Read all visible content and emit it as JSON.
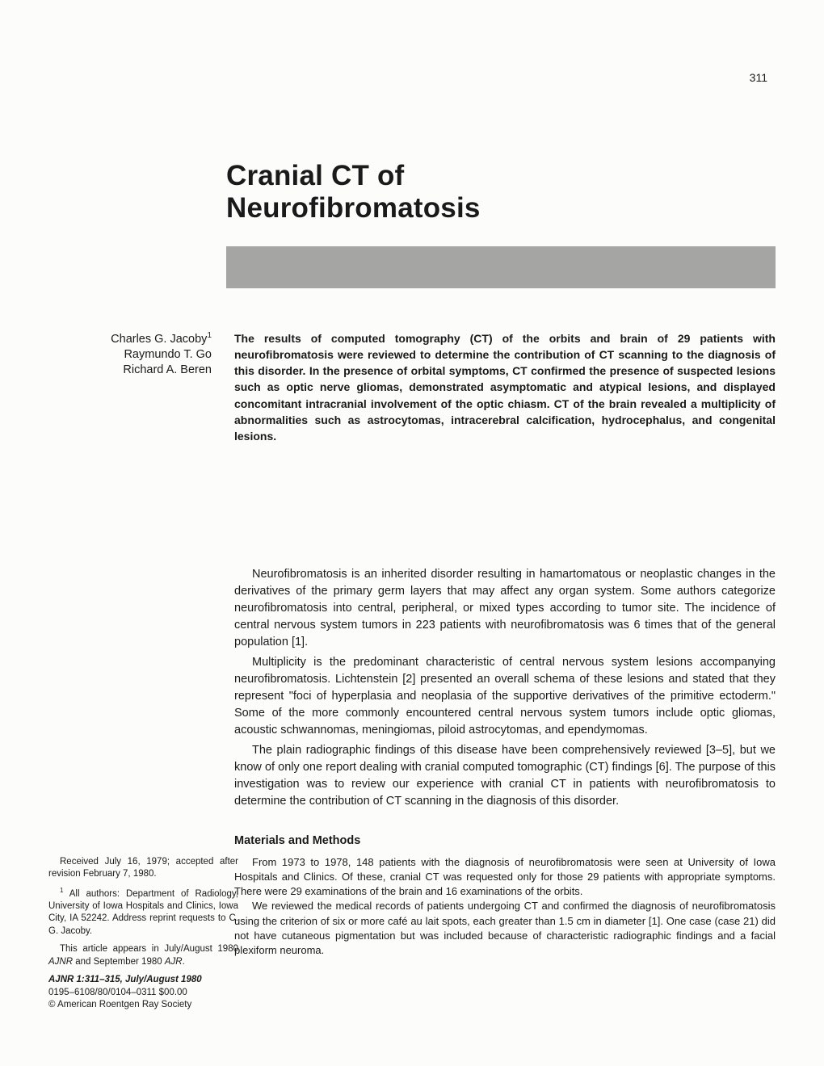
{
  "page_number": "311",
  "title": {
    "line1": "Cranial CT of",
    "line2": "Neurofibromatosis"
  },
  "authors": [
    "Charles G. Jacoby",
    "Raymundo T. Go",
    "Richard A. Beren"
  ],
  "author_superscript": "1",
  "abstract": "The results of computed tomography (CT) of the orbits and brain of 29 patients with neurofibromatosis were reviewed to determine the contribution of CT scanning to the diagnosis of this disorder. In the presence of orbital symptoms, CT confirmed the presence of suspected lesions such as optic nerve gliomas, demonstrated asymptomatic and atypical lesions, and displayed concomitant intracranial involvement of the optic chiasm. CT of the brain revealed a multiplicity of abnormalities such as astrocytomas, intracerebral calcification, hydrocephalus, and congenital lesions.",
  "intro": {
    "p1": "Neurofibromatosis is an inherited disorder resulting in hamartomatous or neoplastic changes in the derivatives of the primary germ layers that may affect any organ system. Some authors categorize neurofibromatosis into central, peripheral, or mixed types according to tumor site. The incidence of central nervous system tumors in 223 patients with neurofibromatosis was 6 times that of the general population [1].",
    "p2": "Multiplicity is the predominant characteristic of central nervous system lesions accompanying neurofibromatosis. Lichtenstein [2] presented an overall schema of these lesions and stated that they represent \"foci of hyperplasia and neoplasia of the supportive derivatives of the primitive ectoderm.\" Some of the more commonly encountered central nervous system tumors include optic gliomas, acoustic schwannomas, meningiomas, piloid astrocytomas, and ependymomas.",
    "p3": "The plain radiographic findings of this disease have been comprehensively reviewed [3–5], but we know of only one report dealing with cranial computed tomographic (CT) findings [6]. The purpose of this investigation was to review our experience with cranial CT in patients with neurofibromatosis to determine the contribution of CT scanning in the diagnosis of this disorder."
  },
  "materials": {
    "heading": "Materials and Methods",
    "p1": "From 1973 to 1978, 148 patients with the diagnosis of neurofibromatosis were seen at University of Iowa Hospitals and Clinics. Of these, cranial CT was requested only for those 29 patients with appropriate symptoms. There were 29 examinations of the brain and 16 examinations of the orbits.",
    "p2": "We reviewed the medical records of patients undergoing CT and confirmed the diagnosis of neurofibromatosis using the criterion of six or more café au lait spots, each greater than 1.5 cm in diameter [1]. One case (case 21) did not have cutaneous pigmentation but was included because of characteristic radiographic findings and a facial plexiform neuroma."
  },
  "footer": {
    "received": "Received July 16, 1979; accepted after revision February 7, 1980.",
    "affiliation_sup": "1",
    "affiliation": " All authors: Department of Radiology, University of Iowa Hospitals and Clinics, Iowa City, IA 52242. Address reprint requests to C. G. Jacoby.",
    "appears_pre": "This article appears in July/August 1980 ",
    "appears_j1": "AJNR",
    "appears_mid": " and September 1980 ",
    "appears_j2": "AJR",
    "appears_end": ".",
    "citation_bold": "AJNR 1:311–315, July/August 1980",
    "issn": "0195–6108/80/0104–0311 $00.00",
    "copyright": "© American Roentgen Ray Society"
  },
  "style": {
    "page_bg": "#fcfcfa",
    "text_color": "#1a1a1a",
    "gray_bar": "#a5a6a4",
    "title_fontsize": 35,
    "body_fontsize": 14.5,
    "abstract_fontsize": 14,
    "methods_fontsize": 13,
    "footer_fontsize": 11.5
  }
}
